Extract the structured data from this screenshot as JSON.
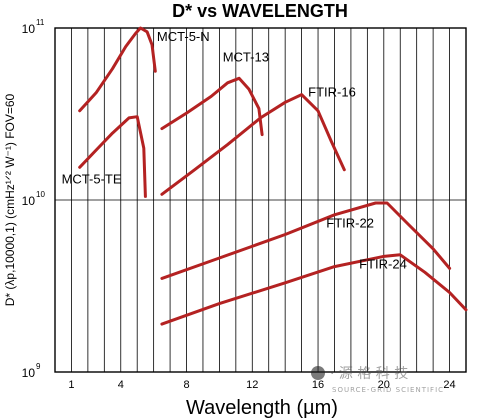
{
  "chart_data": {
    "type": "line",
    "title": "D* vs WAVELENGTH",
    "xlabel": "Wavelength (µm)",
    "ylabel": "D* (λp,10000,1) (cmHz¹ᐟ² W⁻¹) FOV=60",
    "x_tick_labels": [
      "1",
      "4",
      "8",
      "12",
      "16",
      "20",
      "24"
    ],
    "x_ticks": [
      1,
      4,
      8,
      12,
      16,
      20,
      24
    ],
    "xlim": [
      0,
      25
    ],
    "y_scale": "log",
    "ylim": [
      1000000000.0,
      100000000000.0
    ],
    "y_ticks": [
      {
        "value": 1000000000.0,
        "base": "10",
        "exp": "9"
      },
      {
        "value": 10000000000.0,
        "base": "10",
        "exp": "10"
      },
      {
        "value": 100000000000.0,
        "base": "10",
        "exp": "11"
      }
    ],
    "grid": true,
    "line_color": "#b42222",
    "series": [
      {
        "name": "MCT-5-N",
        "points": [
          [
            1.5,
            33000000000.0
          ],
          [
            2.5,
            42000000000.0
          ],
          [
            3.5,
            58000000000.0
          ],
          [
            4.3,
            78000000000.0
          ],
          [
            4.9,
            93000000000.0
          ],
          [
            5.2,
            100000000000.0
          ],
          [
            5.6,
            95000000000.0
          ],
          [
            5.9,
            80000000000.0
          ],
          [
            6.1,
            56000000000.0
          ]
        ]
      },
      {
        "name": "MCT-13",
        "points": [
          [
            6.5,
            26000000000.0
          ],
          [
            8.0,
            32000000000.0
          ],
          [
            9.5,
            40000000000.0
          ],
          [
            10.5,
            48000000000.0
          ],
          [
            11.2,
            51000000000.0
          ],
          [
            11.8,
            44000000000.0
          ],
          [
            12.4,
            34000000000.0
          ],
          [
            12.6,
            24000000000.0
          ]
        ]
      },
      {
        "name": "FTIR-16",
        "points": [
          [
            6.5,
            10800000000.0
          ],
          [
            8.5,
            15000000000.0
          ],
          [
            10.5,
            21000000000.0
          ],
          [
            12.5,
            30000000000.0
          ],
          [
            14.0,
            37000000000.0
          ],
          [
            15.0,
            41000000000.0
          ],
          [
            16.0,
            33000000000.0
          ],
          [
            16.8,
            22000000000.0
          ],
          [
            17.6,
            15000000000.0
          ]
        ]
      },
      {
        "name": "MCT-5-TE",
        "points": [
          [
            1.5,
            15500000000.0
          ],
          [
            2.5,
            19500000000.0
          ],
          [
            3.5,
            24500000000.0
          ],
          [
            4.5,
            30000000000.0
          ],
          [
            5.0,
            30500000000.0
          ],
          [
            5.4,
            20000000000.0
          ],
          [
            5.5,
            10500000000.0
          ]
        ]
      },
      {
        "name": "FTIR-22",
        "points": [
          [
            6.5,
            3500000000.0
          ],
          [
            10.0,
            4600000000.0
          ],
          [
            14.0,
            6300000000.0
          ],
          [
            17.0,
            8200000000.0
          ],
          [
            19.5,
            9600000000.0
          ],
          [
            20.2,
            9600000000.0
          ],
          [
            21.5,
            7200000000.0
          ],
          [
            23.0,
            5200000000.0
          ],
          [
            24.0,
            4000000000.0
          ]
        ]
      },
      {
        "name": "FTIR-24",
        "points": [
          [
            6.5,
            1900000000.0
          ],
          [
            10.0,
            2500000000.0
          ],
          [
            14.0,
            3300000000.0
          ],
          [
            17.0,
            4100000000.0
          ],
          [
            20.0,
            4700000000.0
          ],
          [
            21.0,
            4800000000.0
          ],
          [
            22.5,
            3800000000.0
          ],
          [
            24.0,
            2900000000.0
          ],
          [
            25.0,
            2300000000.0
          ]
        ]
      }
    ],
    "labels": [
      {
        "text": "MCT-5-N",
        "x": 6.2,
        "y": 84000000000.0
      },
      {
        "text": "MCT-13",
        "x": 10.2,
        "y": 64000000000.0
      },
      {
        "text": "FTIR-16",
        "x": 15.4,
        "y": 40000000000.0
      },
      {
        "text": "MCT-5-TE",
        "x": 0.4,
        "y": 12500000000.0
      },
      {
        "text": "FTIR-22",
        "x": 16.5,
        "y": 6900000000.0
      },
      {
        "text": "FTIR-24",
        "x": 18.5,
        "y": 4000000000.0
      }
    ]
  },
  "watermark": {
    "glyphs": "· 源 格 科 技",
    "sub": "SOURCE-GRID SCIENTIFIC"
  }
}
